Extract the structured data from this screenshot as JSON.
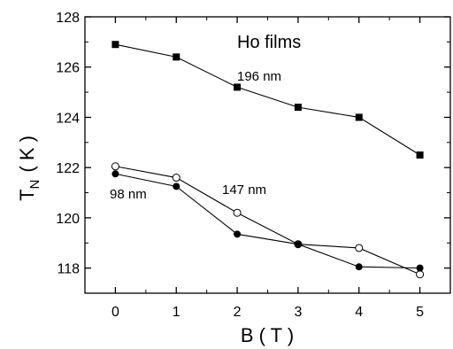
{
  "chart_data": {
    "type": "line",
    "title": "Ho films",
    "xlabel": "B ( T )",
    "ylabel_main": "T",
    "ylabel_sub": "N",
    "ylabel_unit": "( K )",
    "xlim": [
      -0.5,
      5.5
    ],
    "ylim": [
      117,
      128
    ],
    "xticks": [
      0,
      1,
      2,
      3,
      4,
      5
    ],
    "yticks": [
      118,
      120,
      122,
      124,
      126,
      128
    ],
    "grid": false,
    "series": [
      {
        "name": "196 nm",
        "marker": "filled-square",
        "x": [
          0,
          1,
          2,
          3,
          4,
          5
        ],
        "y": [
          126.9,
          126.4,
          125.2,
          124.4,
          124.0,
          122.5
        ]
      },
      {
        "name": "147 nm",
        "marker": "open-circle",
        "x": [
          0,
          1,
          2,
          3,
          4,
          5
        ],
        "y": [
          122.05,
          121.6,
          120.2,
          118.95,
          118.8,
          117.75
        ]
      },
      {
        "name": "98 nm",
        "marker": "filled-circle",
        "x": [
          0,
          1,
          2,
          3,
          4,
          5
        ],
        "y": [
          121.75,
          121.25,
          119.35,
          118.95,
          118.05,
          118.0
        ]
      }
    ],
    "annotations": [
      "196 nm",
      "147 nm",
      "98 nm"
    ]
  }
}
